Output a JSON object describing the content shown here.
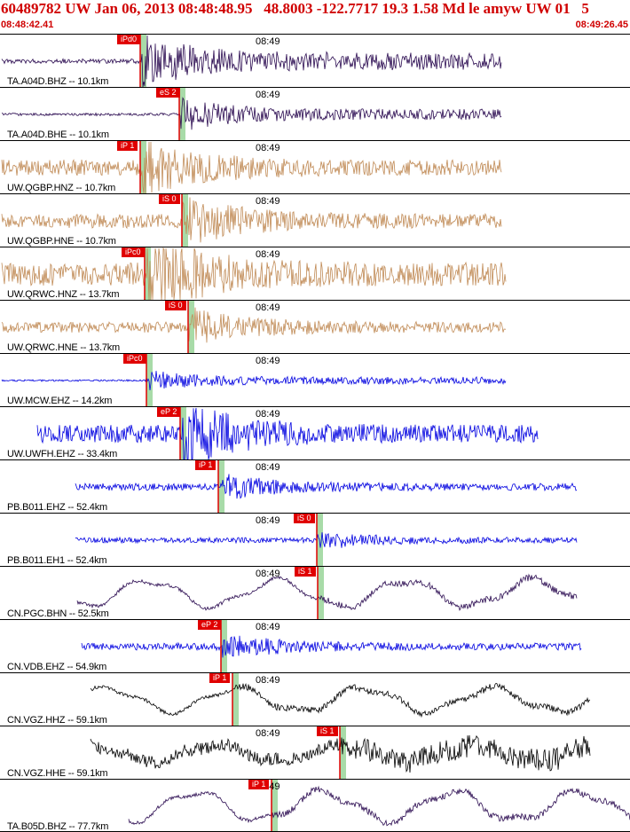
{
  "header": {
    "title": "60489782 UW Jan 06, 2013 08:48:48.95   48.8003 -122.7717 19.3 1.58 Md le amyw UW 01   5",
    "start_time": "08:48:42.41",
    "end_time": "08:49:26.45"
  },
  "time_tick": "08:49",
  "colors": {
    "tan": "#c08a55",
    "purple": "#2a0a50",
    "blue": "#0000e0",
    "black": "#000000",
    "pick": "#e00000",
    "window": "#a8dba8"
  },
  "traces": [
    {
      "label": "TA.A04D.BHZ -- 10.1km",
      "pick": "iPd0",
      "color": "purple"
    },
    {
      "label": "TA.A04D.BHE -- 10.1km",
      "pick": "eS 2",
      "color": "purple"
    },
    {
      "label": "UW.QGBP.HNZ -- 10.7km",
      "pick": "iP 1",
      "color": "tan"
    },
    {
      "label": "UW.QGBP.HNE -- 10.7km",
      "pick": "iS 0",
      "color": "tan"
    },
    {
      "label": "UW.QRWC.HNZ -- 13.7km",
      "pick": "iPc0",
      "color": "tan"
    },
    {
      "label": "UW.QRWC.HNE -- 13.7km",
      "pick": "iS 0",
      "color": "tan"
    },
    {
      "label": "UW.MCW.EHZ -- 14.2km",
      "pick": "iPc0",
      "color": "blue"
    },
    {
      "label": "UW.UWFH.EHZ -- 33.4km",
      "pick": "eP 2",
      "color": "blue"
    },
    {
      "label": "PB.B011.EHZ -- 52.4km",
      "pick": "iP 1",
      "color": "blue"
    },
    {
      "label": "PB.B011.EH1 -- 52.4km",
      "pick": "iS 0",
      "color": "blue"
    },
    {
      "label": "CN.PGC.BHN -- 52.5km",
      "pick": "iS 1",
      "color": "purple"
    },
    {
      "label": "CN.VDB.EHZ -- 54.9km",
      "pick": "eP 2",
      "color": "blue"
    },
    {
      "label": "CN.VGZ.HHZ -- 59.1km",
      "pick": "iP 1",
      "color": "black"
    },
    {
      "label": "CN.VGZ.HHE -- 59.1km",
      "pick": "iS 1",
      "color": "black"
    },
    {
      "label": "TA.B05D.BHZ -- 77.7km",
      "pick": "iP 1",
      "color": "purple"
    }
  ]
}
